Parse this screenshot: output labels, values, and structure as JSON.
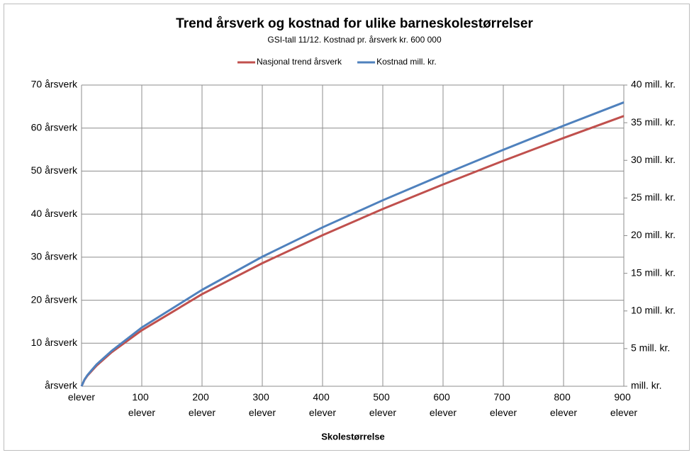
{
  "chart_data": {
    "type": "line",
    "title": "Trend årsverk og kostnad for ulike barneskolestørrelser",
    "subtitle": "GSI-tall 11/12. Kostnad pr. årsverk kr. 600 000",
    "x_label": "Skolestørrelse",
    "x": [
      0,
      5,
      10,
      25,
      50,
      100,
      200,
      300,
      400,
      500,
      600,
      700,
      800,
      900
    ],
    "series": [
      {
        "name": "Nasjonal trend årsverk",
        "color": "#c0504d",
        "values": [
          0,
          1.5,
          2.5,
          4.8,
          7.9,
          13,
          21.4,
          28.6,
          35.1,
          41.2,
          46.9,
          52.4,
          57.7,
          62.8
        ]
      },
      {
        "name": "Kostnad mill. kr.",
        "color": "#4f81bd",
        "axis": "y2",
        "values": [
          0,
          0.9,
          1.5,
          2.9,
          4.7,
          7.8,
          12.8,
          17.2,
          21.1,
          24.7,
          28.1,
          31.4,
          34.6,
          37.7
        ]
      }
    ],
    "xlim": [
      0,
      900
    ],
    "xticks": [
      {
        "value": 0,
        "label": "elever"
      },
      {
        "value": 100,
        "label": "100 elever"
      },
      {
        "value": 200,
        "label": "200 elever"
      },
      {
        "value": 300,
        "label": "300 elever"
      },
      {
        "value": 400,
        "label": "400 elever"
      },
      {
        "value": 500,
        "label": "500 elever"
      },
      {
        "value": 600,
        "label": "600 elever"
      },
      {
        "value": 700,
        "label": "700 elever"
      },
      {
        "value": 800,
        "label": "800 elever"
      },
      {
        "value": 900,
        "label": "900 elever"
      }
    ],
    "ylim": [
      0,
      70
    ],
    "yticks": [
      {
        "value": 0,
        "label": "årsverk"
      },
      {
        "value": 10,
        "label": "10 årsverk"
      },
      {
        "value": 20,
        "label": "20 årsverk"
      },
      {
        "value": 30,
        "label": "30 årsverk"
      },
      {
        "value": 40,
        "label": "40 årsverk"
      },
      {
        "value": 50,
        "label": "50 årsverk"
      },
      {
        "value": 60,
        "label": "60 årsverk"
      },
      {
        "value": 70,
        "label": "70 årsverk"
      }
    ],
    "y2lim": [
      0,
      40
    ],
    "y2ticks": [
      {
        "value": 0,
        "label": "mill. kr."
      },
      {
        "value": 5,
        "label": "5 mill. kr."
      },
      {
        "value": 10,
        "label": "10 mill. kr."
      },
      {
        "value": 15,
        "label": "15 mill. kr."
      },
      {
        "value": 20,
        "label": "20 mill. kr."
      },
      {
        "value": 25,
        "label": "25 mill. kr."
      },
      {
        "value": 30,
        "label": "30 mill. kr."
      },
      {
        "value": 35,
        "label": "35 mill. kr."
      },
      {
        "value": 40,
        "label": "40 mill. kr."
      }
    ],
    "grid": true,
    "legend": "top"
  }
}
